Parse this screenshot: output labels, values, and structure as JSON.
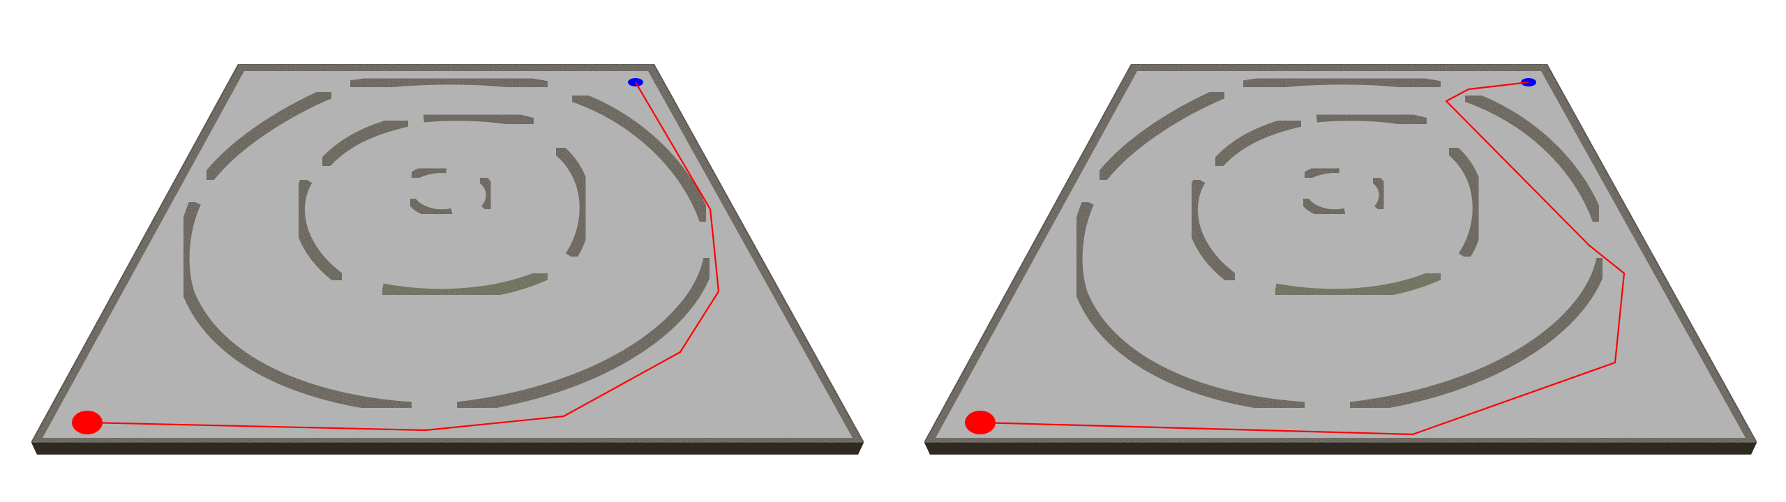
{
  "scene": {
    "background_color": "#ffffff",
    "floor_color": "#b3b3b3",
    "wall_color": "#57503f",
    "wall_edge_color": "#2e2a20",
    "highlight_wall_color": "#5c6140",
    "start_marker_color": "#ff0000",
    "goal_marker_color": "#0000ff",
    "path_color": "#ff0000",
    "maze_rings": 4,
    "panels": [
      {
        "name": "panel-left",
        "path_route": "outer-ring-east-side"
      },
      {
        "name": "panel-right",
        "path_route": "through-east-gap"
      }
    ]
  }
}
